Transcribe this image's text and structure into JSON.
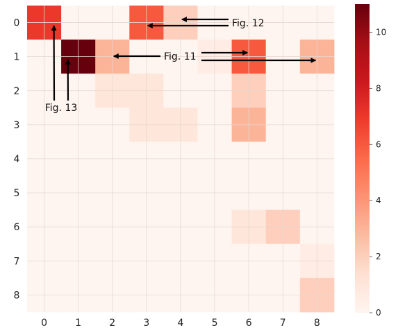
{
  "chart_data": {
    "type": "heatmap",
    "title": "",
    "xlabel": "",
    "ylabel": "",
    "x_categories": [
      "0",
      "1",
      "2",
      "3",
      "4",
      "5",
      "6",
      "7",
      "8"
    ],
    "y_categories": [
      "0",
      "1",
      "2",
      "3",
      "4",
      "5",
      "6",
      "7",
      "8"
    ],
    "values": [
      [
        7,
        0,
        0,
        6,
        2,
        0,
        0,
        0,
        0
      ],
      [
        0,
        11,
        3,
        0,
        0,
        0.5,
        6,
        0,
        3
      ],
      [
        0,
        0,
        1,
        1,
        0,
        0,
        2,
        0,
        0
      ],
      [
        0,
        0,
        0,
        1,
        1,
        0,
        3,
        0,
        0
      ],
      [
        0,
        0,
        0,
        0,
        0,
        0,
        0,
        0,
        0
      ],
      [
        0,
        0,
        0,
        0,
        0,
        0,
        0,
        0,
        0
      ],
      [
        0,
        0,
        0,
        0,
        0,
        0,
        1,
        2,
        0
      ],
      [
        0,
        0,
        0,
        0,
        0,
        0,
        0,
        0,
        0.5
      ],
      [
        0,
        0,
        0,
        0,
        0,
        0,
        0,
        0,
        2
      ]
    ],
    "colorbar": {
      "min": 0,
      "max": 11,
      "ticks": [
        0,
        2,
        4,
        6,
        8,
        10
      ],
      "colormap": "Reds"
    },
    "grid": true,
    "annotations": [
      {
        "text": "Fig. 12",
        "arrows_to": [
          [
            3,
            0
          ],
          [
            4,
            0
          ]
        ]
      },
      {
        "text": "Fig. 11",
        "arrows_to": [
          [
            2,
            1
          ],
          [
            6,
            1
          ],
          [
            8,
            1
          ]
        ]
      },
      {
        "text": "Fig. 13",
        "arrows_to": [
          [
            0,
            0
          ],
          [
            1,
            1
          ]
        ]
      }
    ]
  }
}
